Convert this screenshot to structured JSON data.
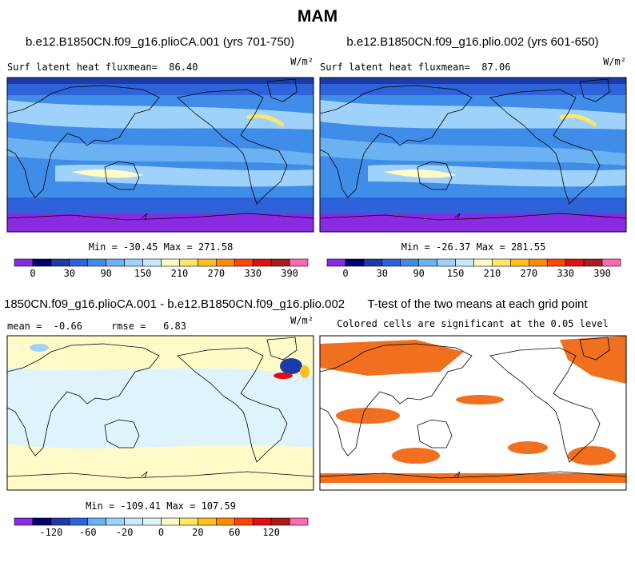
{
  "title": "MAM",
  "panels": [
    {
      "title": "b.e12.B1850CN.f09_g16.plioCA.001 (yrs 701-750)",
      "left_text": "Surf latent heat fluxmean=  86.40",
      "units": "W/m²",
      "stats": "Min = -30.45 Max = 271.58"
    },
    {
      "title": "b.e12.B1850CN.f09_g16.plio.002 (yrs 601-650)",
      "left_text": "Surf latent heat fluxmean=  87.06",
      "units": "W/m²",
      "stats": "Min = -26.37 Max = 281.55"
    },
    {
      "title": "1850CN.f09_g16.plioCA.001 - b.e12.B1850CN.f09_g16.plio.002",
      "left_text": "mean =  -0.66     rmse =   6.83",
      "units": "W/m²",
      "stats": "Min = -109.41 Max = 107.59"
    },
    {
      "title": "T-test of the two means at each grid point",
      "left_text": "Colored cells are significant at the 0.05 level"
    }
  ],
  "colorbars": [
    {
      "colors": [
        "#8a2be2",
        "#00006e",
        "#1c3aa8",
        "#2e62d8",
        "#3f8de8",
        "#6bb2f2",
        "#9fd2fa",
        "#c9e9fc",
        "#fffbc8",
        "#ffe56a",
        "#ffc020",
        "#ff8c00",
        "#ff4500",
        "#dd1111",
        "#aa1c1c",
        "#ff69b4"
      ],
      "labels": [
        "0",
        "30",
        "90",
        "150",
        "210",
        "270",
        "330",
        "390"
      ]
    },
    {
      "colors": [
        "#8a2be2",
        "#00006e",
        "#1c3aa8",
        "#2e62d8",
        "#6bb2f2",
        "#9fd2fa",
        "#c9e9fc",
        "#dff3fc",
        "#fffbc8",
        "#ffe56a",
        "#ffc020",
        "#ff8c00",
        "#ff4500",
        "#dd1111",
        "#aa1c1c",
        "#ff69b4"
      ],
      "labels": [
        "-120",
        "-60",
        "-20",
        "0",
        "20",
        "60",
        "120"
      ]
    }
  ]
}
